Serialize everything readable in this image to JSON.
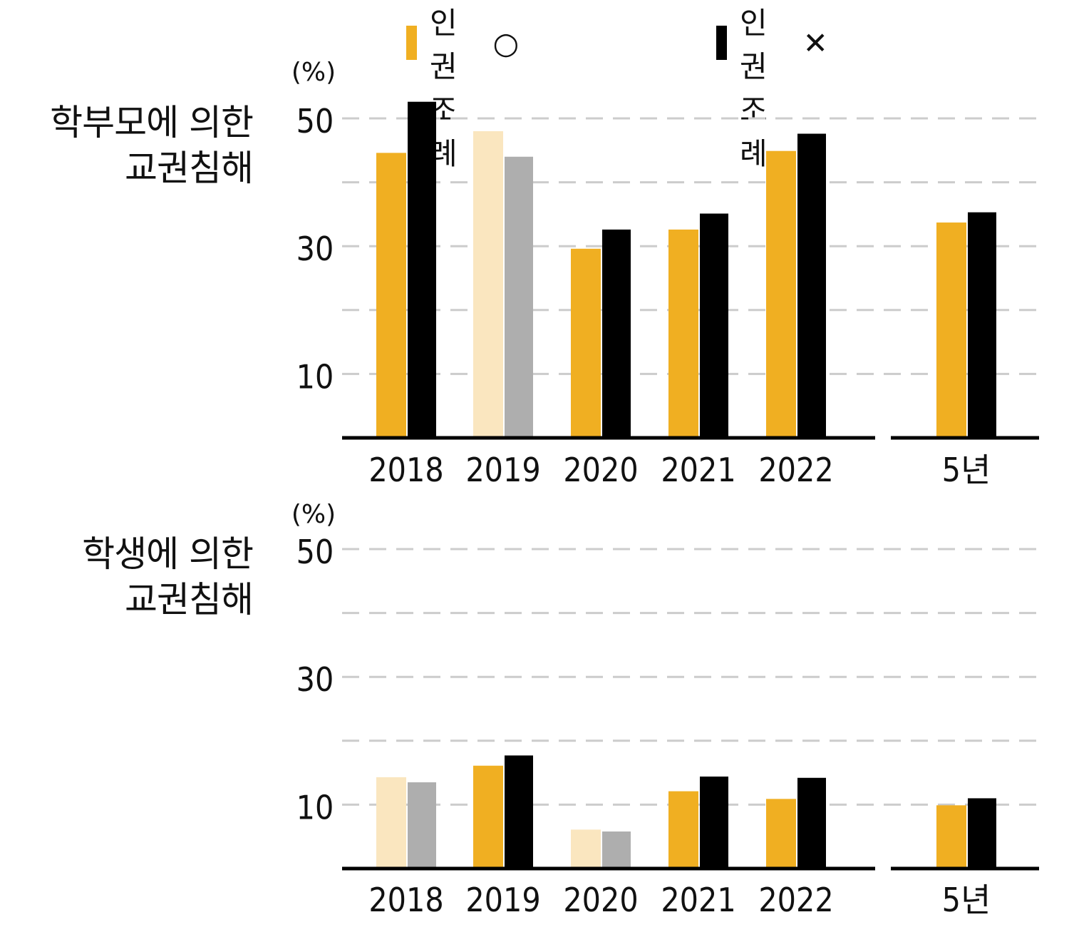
{
  "legend": {
    "items": [
      {
        "label": "학생인권조례",
        "mark": "○",
        "color": "#F0AF22"
      },
      {
        "label": "학생인권조례",
        "mark": "✕",
        "color": "#000000"
      }
    ]
  },
  "colors": {
    "with_ordinance": "#F0AF22",
    "without_ordinance": "#000000",
    "with_ordinance_faded": "#FAE6BF",
    "without_ordinance_faded": "#AEAEAE",
    "grid": "#cccccc",
    "axis": "#000000"
  },
  "chart_data": [
    {
      "type": "bar",
      "title": "학부모에 의한 교권침해",
      "title_lines": [
        "학부모에 의한",
        "교권침해"
      ],
      "ylabel": "(%)",
      "ylim": [
        0,
        50
      ],
      "yticks": [
        10,
        30,
        50
      ],
      "grid_minor": [
        20,
        40
      ],
      "categories": [
        "2018",
        "2019",
        "2020",
        "2021",
        "2022",
        "5년"
      ],
      "series": [
        {
          "name": "학생인권조례 ○",
          "values": [
            44.6,
            48.0,
            29.6,
            32.6,
            44.9,
            33.7
          ]
        },
        {
          "name": "학생인권조례 ✕",
          "values": [
            52.6,
            44.0,
            32.6,
            35.1,
            47.6,
            35.3
          ]
        }
      ],
      "faded_categories": [
        "2019"
      ]
    },
    {
      "type": "bar",
      "title": "학생에 의한 교권침해",
      "title_lines": [
        "학생에 의한",
        "교권침해"
      ],
      "ylabel": "(%)",
      "ylim": [
        0,
        50
      ],
      "yticks": [
        10,
        30,
        50
      ],
      "grid_minor": [
        20,
        40
      ],
      "categories": [
        "2018",
        "2019",
        "2020",
        "2021",
        "2022",
        "5년"
      ],
      "series": [
        {
          "name": "학생인권조례 ○",
          "values": [
            14.3,
            16.1,
            6.1,
            12.1,
            10.9,
            9.9
          ]
        },
        {
          "name": "학생인권조례 ✕",
          "values": [
            13.5,
            17.7,
            5.8,
            14.4,
            14.2,
            11.0
          ]
        }
      ],
      "faded_categories": [
        "2018",
        "2020"
      ]
    }
  ]
}
